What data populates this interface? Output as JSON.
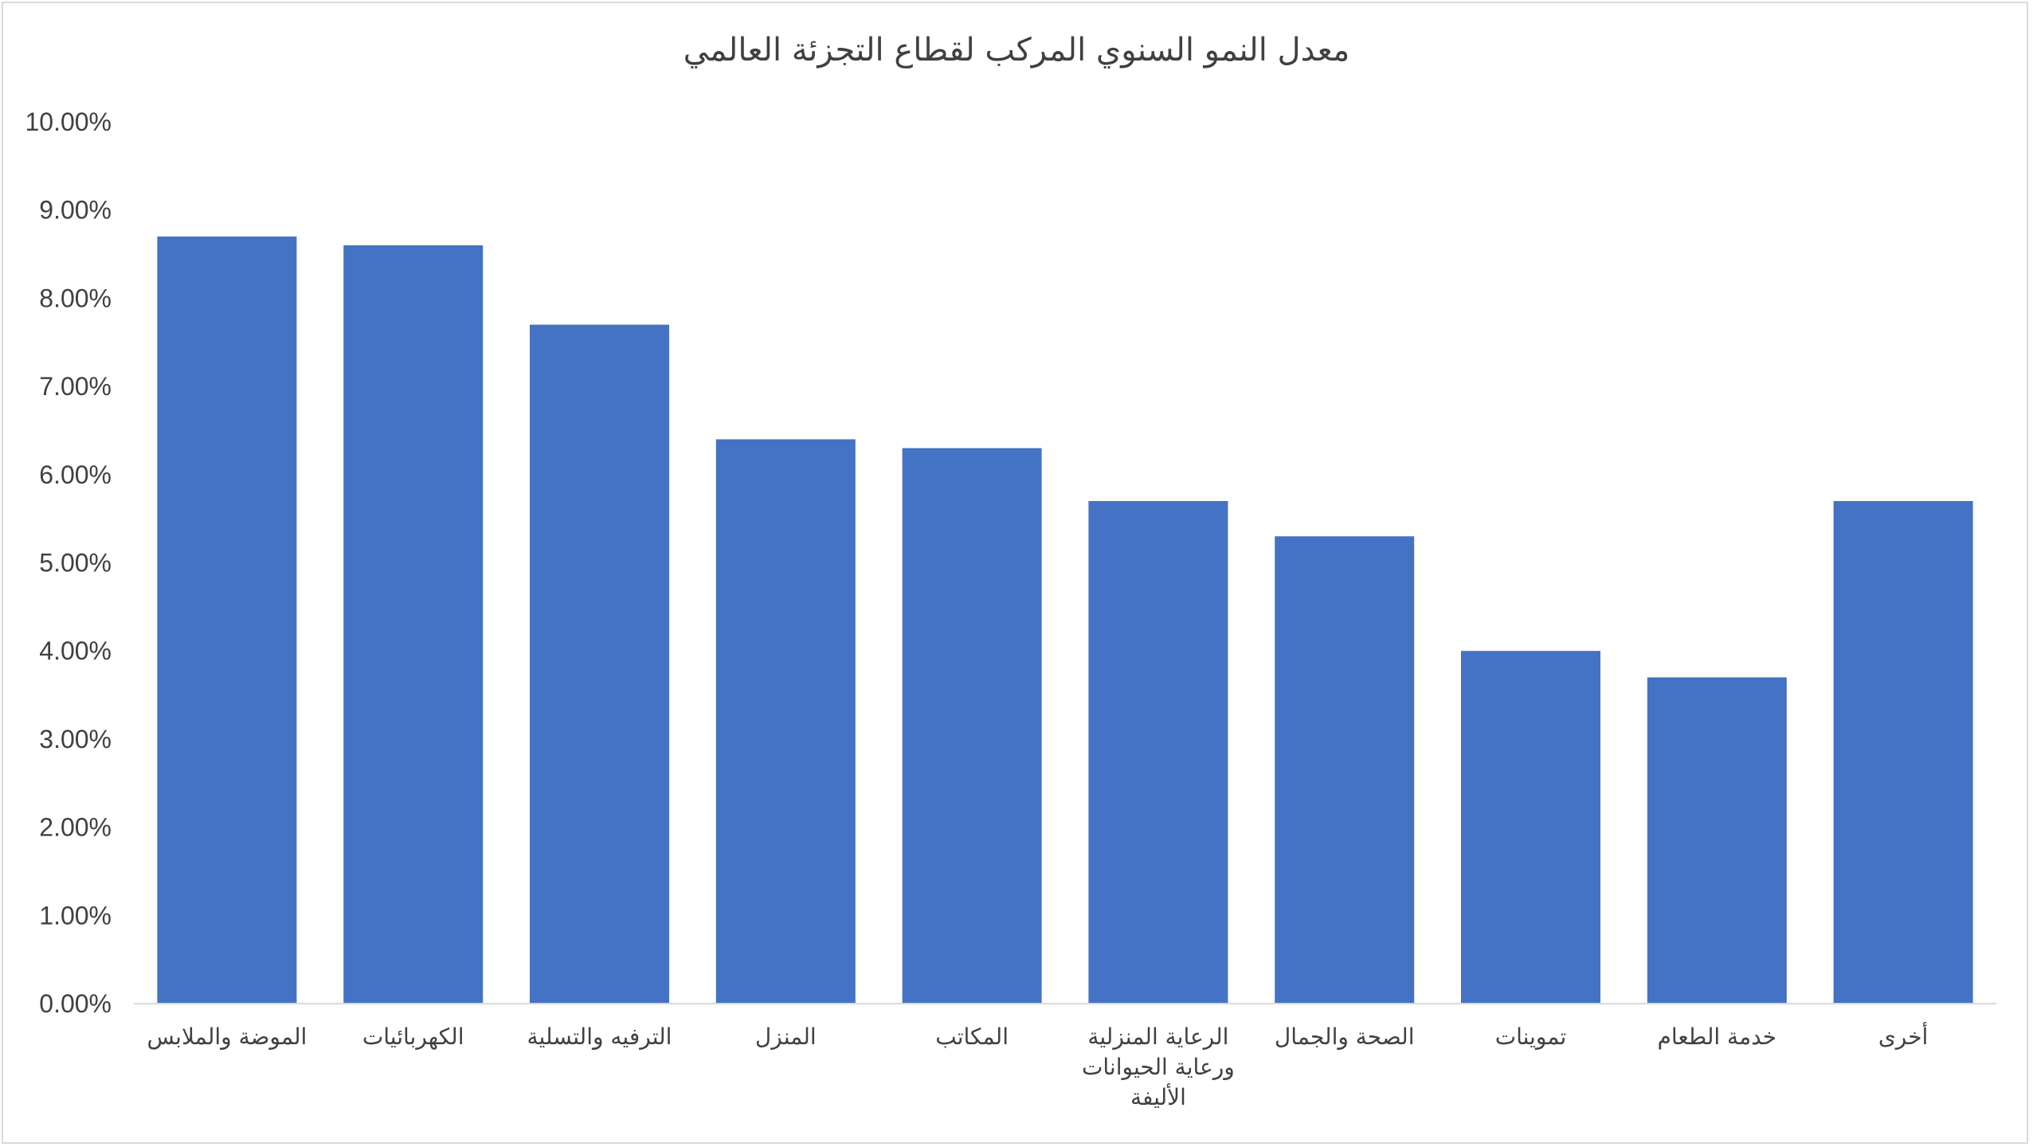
{
  "chart_data": {
    "type": "bar",
    "title": "معدل النمو السنوي المركب لقطاع التجزئة العالمي",
    "xlabel": "",
    "ylabel": "",
    "ylim": [
      0,
      0.1
    ],
    "y_ticks": [
      "0.00%",
      "1.00%",
      "2.00%",
      "3.00%",
      "4.00%",
      "5.00%",
      "6.00%",
      "7.00%",
      "8.00%",
      "9.00%",
      "10.00%"
    ],
    "grid": false,
    "legend": "none",
    "bar_color": "#4472C4",
    "categories": [
      [
        "الموضة والملابس"
      ],
      [
        "الكهربائيات"
      ],
      [
        "الترفيه والتسلية"
      ],
      [
        "المنزل"
      ],
      [
        "المكاتب"
      ],
      [
        "الرعاية المنزلية",
        "ورعاية الحيوانات",
        "الأليفة"
      ],
      [
        "الصحة والجمال"
      ],
      [
        "تموينات"
      ],
      [
        "خدمة الطعام"
      ],
      [
        "أخرى"
      ]
    ],
    "values": [
      0.087,
      0.086,
      0.077,
      0.064,
      0.063,
      0.057,
      0.053,
      0.04,
      0.037,
      0.057
    ]
  }
}
